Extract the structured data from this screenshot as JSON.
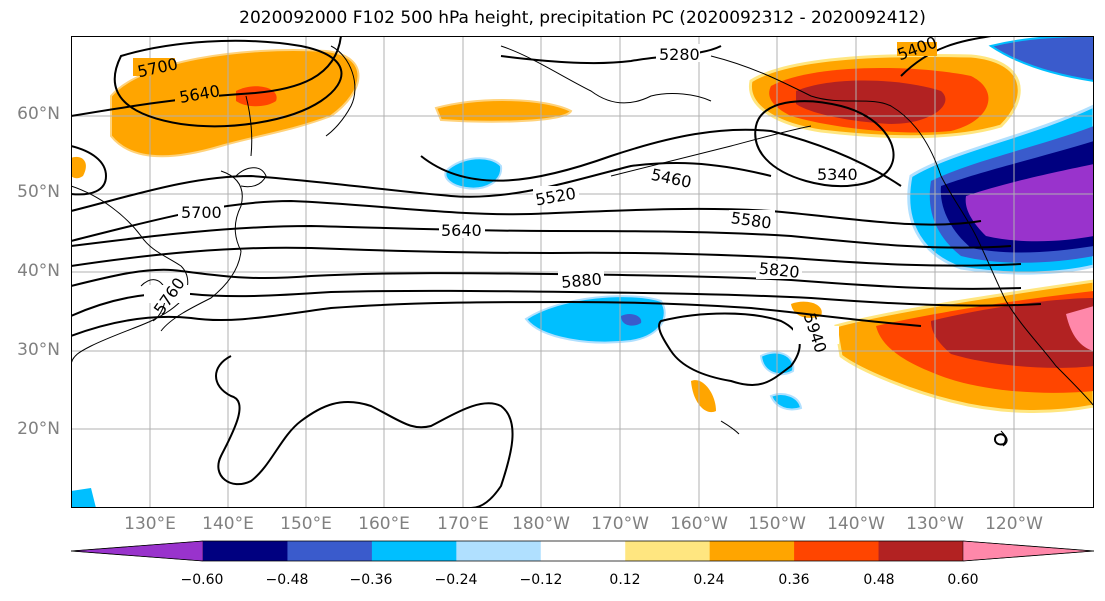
{
  "title": "2020092000 F102 500 hPa height, precipitation PC (2020092312 - 2020092412)",
  "lat_labels": [
    "60°N",
    "50°N",
    "40°N",
    "30°N",
    "20°N"
  ],
  "lon_labels": [
    "130°E",
    "140°E",
    "150°E",
    "160°E",
    "170°E",
    "180°W",
    "170°W",
    "160°W",
    "150°W",
    "140°W",
    "130°W",
    "120°W"
  ],
  "contour_labels": [
    "5700",
    "5640",
    "5280",
    "5340",
    "5460",
    "5520",
    "5580",
    "5700",
    "5640",
    "5820",
    "5880",
    "5760",
    "5940",
    "5400"
  ],
  "colorbar": {
    "ticks": [
      "−0.60",
      "−0.48",
      "−0.36",
      "−0.24",
      "−0.12",
      "0.12",
      "0.24",
      "0.36",
      "0.48",
      "0.60"
    ],
    "colors": [
      "#9933cc",
      "#000080",
      "#3a5bcc",
      "#00bfff",
      "#b0e0ff",
      "#ffffff",
      "#ffe680",
      "#ffa500",
      "#ff4500",
      "#b22222",
      "#ff88aa"
    ]
  }
}
